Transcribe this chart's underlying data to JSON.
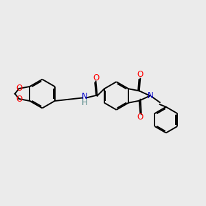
{
  "bg_color": "#ebebeb",
  "bond_color": "#000000",
  "N_color": "#0000cc",
  "O_color": "#ff0000",
  "H_color": "#558888",
  "line_width": 1.4,
  "dbo": 0.055,
  "font_size": 8.5,
  "fig_width": 3.0,
  "fig_height": 3.0,
  "dpi": 100,
  "xlim": [
    0,
    10
  ],
  "ylim": [
    0,
    10
  ]
}
